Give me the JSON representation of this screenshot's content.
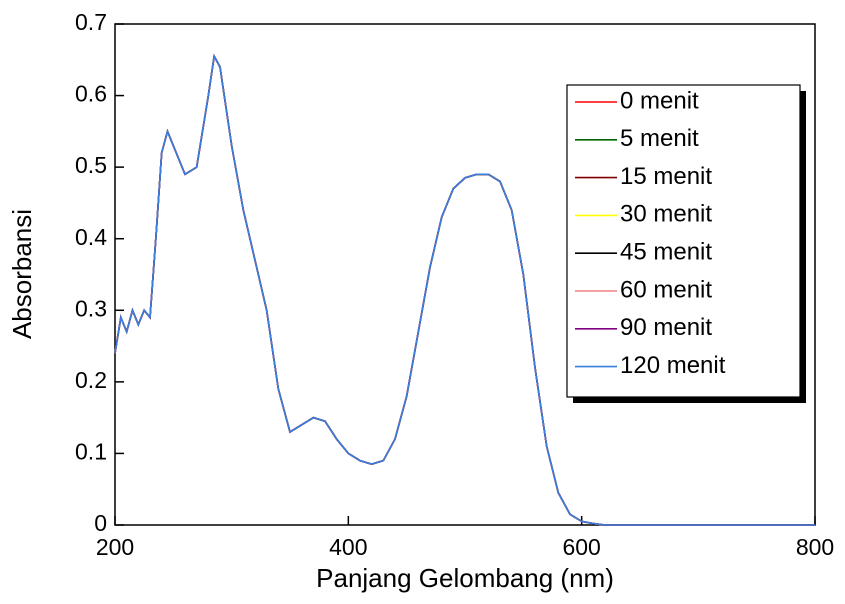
{
  "chart_data": {
    "type": "line",
    "x_label": "Panjang Gelombang (nm)",
    "y_label": "Absorbansi",
    "x": [
      200,
      205,
      210,
      215,
      220,
      225,
      230,
      235,
      240,
      245,
      250,
      260,
      270,
      280,
      285,
      290,
      300,
      310,
      320,
      330,
      340,
      350,
      360,
      370,
      380,
      390,
      400,
      410,
      420,
      430,
      440,
      450,
      460,
      470,
      480,
      490,
      500,
      510,
      520,
      530,
      540,
      550,
      560,
      570,
      580,
      590,
      600,
      610,
      620,
      650,
      700,
      750,
      800
    ],
    "series": [
      {
        "name": "0 menit",
        "color": "#ff0000",
        "values": [
          0.24,
          0.29,
          0.27,
          0.3,
          0.28,
          0.3,
          0.29,
          0.4,
          0.52,
          0.55,
          0.53,
          0.49,
          0.5,
          0.6,
          0.655,
          0.64,
          0.53,
          0.44,
          0.37,
          0.3,
          0.19,
          0.13,
          0.14,
          0.15,
          0.145,
          0.12,
          0.1,
          0.09,
          0.085,
          0.09,
          0.12,
          0.18,
          0.27,
          0.36,
          0.43,
          0.47,
          0.485,
          0.49,
          0.49,
          0.48,
          0.44,
          0.35,
          0.22,
          0.11,
          0.045,
          0.015,
          0.005,
          0.002,
          0,
          0,
          0,
          0,
          0
        ]
      },
      {
        "name": "5 menit",
        "color": "#006400",
        "values": [
          0.24,
          0.29,
          0.27,
          0.3,
          0.28,
          0.3,
          0.29,
          0.4,
          0.52,
          0.55,
          0.53,
          0.49,
          0.5,
          0.6,
          0.655,
          0.64,
          0.53,
          0.44,
          0.37,
          0.3,
          0.19,
          0.13,
          0.14,
          0.15,
          0.145,
          0.12,
          0.1,
          0.09,
          0.085,
          0.09,
          0.12,
          0.18,
          0.27,
          0.36,
          0.43,
          0.47,
          0.485,
          0.49,
          0.49,
          0.48,
          0.44,
          0.35,
          0.22,
          0.11,
          0.045,
          0.015,
          0.005,
          0.002,
          0,
          0,
          0,
          0,
          0
        ]
      },
      {
        "name": "15 menit",
        "color": "#800000",
        "values": [
          0.24,
          0.29,
          0.27,
          0.3,
          0.28,
          0.3,
          0.29,
          0.4,
          0.52,
          0.55,
          0.53,
          0.49,
          0.5,
          0.6,
          0.655,
          0.64,
          0.53,
          0.44,
          0.37,
          0.3,
          0.19,
          0.13,
          0.14,
          0.15,
          0.145,
          0.12,
          0.1,
          0.09,
          0.085,
          0.09,
          0.12,
          0.18,
          0.27,
          0.36,
          0.43,
          0.47,
          0.485,
          0.49,
          0.49,
          0.48,
          0.44,
          0.35,
          0.22,
          0.11,
          0.045,
          0.015,
          0.005,
          0.002,
          0,
          0,
          0,
          0,
          0
        ]
      },
      {
        "name": "30 menit",
        "color": "#ffff00",
        "values": [
          0.24,
          0.29,
          0.27,
          0.3,
          0.28,
          0.3,
          0.29,
          0.4,
          0.52,
          0.55,
          0.53,
          0.49,
          0.5,
          0.6,
          0.655,
          0.64,
          0.53,
          0.44,
          0.37,
          0.3,
          0.19,
          0.13,
          0.14,
          0.15,
          0.145,
          0.12,
          0.1,
          0.09,
          0.085,
          0.09,
          0.12,
          0.18,
          0.27,
          0.36,
          0.43,
          0.47,
          0.485,
          0.49,
          0.49,
          0.48,
          0.44,
          0.35,
          0.22,
          0.11,
          0.045,
          0.015,
          0.005,
          0.002,
          0,
          0,
          0,
          0,
          0
        ]
      },
      {
        "name": "45 menit",
        "color": "#000000",
        "values": [
          0.24,
          0.29,
          0.27,
          0.3,
          0.28,
          0.3,
          0.29,
          0.4,
          0.52,
          0.55,
          0.53,
          0.49,
          0.5,
          0.6,
          0.655,
          0.64,
          0.53,
          0.44,
          0.37,
          0.3,
          0.19,
          0.13,
          0.14,
          0.15,
          0.145,
          0.12,
          0.1,
          0.09,
          0.085,
          0.09,
          0.12,
          0.18,
          0.27,
          0.36,
          0.43,
          0.47,
          0.485,
          0.49,
          0.49,
          0.48,
          0.44,
          0.35,
          0.22,
          0.11,
          0.045,
          0.015,
          0.005,
          0.002,
          0,
          0,
          0,
          0,
          0
        ]
      },
      {
        "name": "60 menit",
        "color": "#f08080",
        "values": [
          0.24,
          0.29,
          0.27,
          0.3,
          0.28,
          0.3,
          0.29,
          0.4,
          0.52,
          0.55,
          0.53,
          0.49,
          0.5,
          0.6,
          0.655,
          0.64,
          0.53,
          0.44,
          0.37,
          0.3,
          0.19,
          0.13,
          0.14,
          0.15,
          0.145,
          0.12,
          0.1,
          0.09,
          0.085,
          0.09,
          0.12,
          0.18,
          0.27,
          0.36,
          0.43,
          0.47,
          0.485,
          0.49,
          0.49,
          0.48,
          0.44,
          0.35,
          0.22,
          0.11,
          0.045,
          0.015,
          0.005,
          0.002,
          0,
          0,
          0,
          0,
          0
        ]
      },
      {
        "name": "90 menit",
        "color": "#800080",
        "values": [
          0.24,
          0.29,
          0.27,
          0.3,
          0.28,
          0.3,
          0.29,
          0.4,
          0.52,
          0.55,
          0.53,
          0.49,
          0.5,
          0.6,
          0.655,
          0.64,
          0.53,
          0.44,
          0.37,
          0.3,
          0.19,
          0.13,
          0.14,
          0.15,
          0.145,
          0.12,
          0.1,
          0.09,
          0.085,
          0.09,
          0.12,
          0.18,
          0.27,
          0.36,
          0.43,
          0.47,
          0.485,
          0.49,
          0.49,
          0.48,
          0.44,
          0.35,
          0.22,
          0.11,
          0.045,
          0.015,
          0.005,
          0.002,
          0,
          0,
          0,
          0,
          0
        ]
      },
      {
        "name": "120 menit",
        "color": "#3a7fdc",
        "values": [
          0.24,
          0.29,
          0.27,
          0.3,
          0.28,
          0.3,
          0.29,
          0.4,
          0.52,
          0.55,
          0.53,
          0.49,
          0.5,
          0.6,
          0.655,
          0.64,
          0.53,
          0.44,
          0.37,
          0.3,
          0.19,
          0.13,
          0.14,
          0.15,
          0.145,
          0.12,
          0.1,
          0.09,
          0.085,
          0.09,
          0.12,
          0.18,
          0.27,
          0.36,
          0.43,
          0.47,
          0.485,
          0.49,
          0.49,
          0.48,
          0.44,
          0.35,
          0.22,
          0.11,
          0.045,
          0.015,
          0.005,
          0.002,
          0,
          0,
          0,
          0,
          0
        ]
      }
    ],
    "xlim": [
      200,
      800
    ],
    "xticks": [
      200,
      400,
      600,
      800
    ],
    "ylim": [
      0,
      0.7
    ],
    "yticks": [
      0,
      0.1,
      0.2,
      0.3,
      0.4,
      0.5,
      0.6,
      0.7
    ],
    "legend": "upper right"
  }
}
